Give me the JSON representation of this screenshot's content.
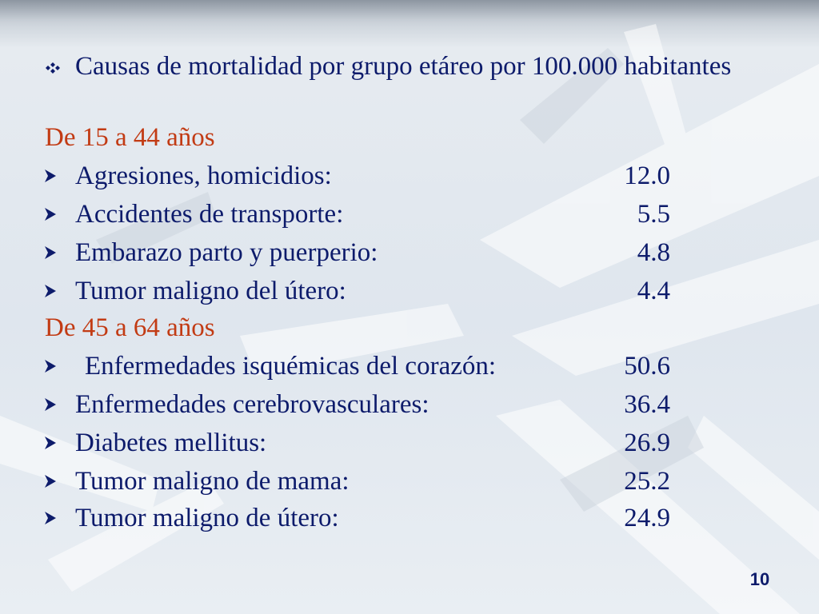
{
  "slide": {
    "intro_text": "Causas de mortalidad por grupo etáreo por 100.000 habitantes",
    "groups": [
      {
        "heading": "De 15 a 44 años",
        "items": [
          {
            "label": "Agresiones, homicidios:",
            "value": "12.0"
          },
          {
            "label": "Accidentes de transporte:",
            "value": "5.5"
          },
          {
            "label": "Embarazo parto y puerperio:",
            "value": "4.8"
          },
          {
            "label": "Tumor maligno del útero:",
            "value": "4.4"
          }
        ]
      },
      {
        "heading": "De 45 a 64 años",
        "items": [
          {
            "label": "Enfermedades isquémicas del corazón:",
            "value": "50.6"
          },
          {
            "label": "Enfermedades cerebrovasculares:",
            "value": "36.4"
          },
          {
            "label": "Diabetes mellitus:",
            "value": "26.9"
          },
          {
            "label": "Tumor maligno de mama:",
            "value": "25.2"
          },
          {
            "label": "Tumor maligno de útero:",
            "value": "24.9"
          }
        ]
      }
    ],
    "page_number": "10"
  },
  "colors": {
    "text": "#0d1b6b",
    "heading": "#c23b14"
  },
  "icons": {
    "intro_bullet": "diamond-cluster-bullet-icon",
    "item_bullet": "arrow-bullet-icon"
  }
}
